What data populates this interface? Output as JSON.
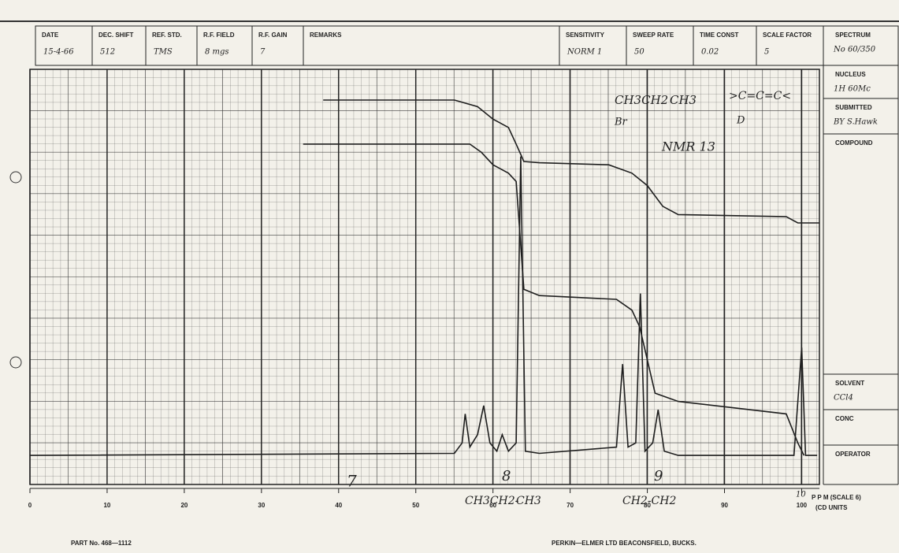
{
  "header": {
    "fields": [
      {
        "label": "DATE",
        "value": "15-4-66"
      },
      {
        "label": "DEC. SHIFT",
        "value": "512"
      },
      {
        "label": "REF. STD.",
        "value": "TMS"
      },
      {
        "label": "R.F. FIELD",
        "value": "8 mgs"
      },
      {
        "label": "R.F. GAIN",
        "value": "7"
      },
      {
        "label": "REMARKS"
      },
      {
        "label": "SENSITIVITY",
        "value": "NORM 1"
      },
      {
        "label": "SWEEP RATE",
        "value": "50"
      },
      {
        "label": "TIME CONST",
        "value": "0.02"
      },
      {
        "label": "SCALE FACTOR",
        "value": "5"
      }
    ],
    "side": [
      {
        "label": "SPECTRUM",
        "value": "No 60/350"
      },
      {
        "label": "NUCLEUS",
        "value": "1H 60Mc"
      },
      {
        "label": "SUBMITTED",
        "value": "BY S.Hawk"
      },
      {
        "label": "COMPOUND"
      },
      {
        "label": "SOLVENT",
        "value": "CCl4"
      },
      {
        "label": "CONC"
      },
      {
        "label": "OPERATOR"
      }
    ]
  },
  "chart_data": {
    "type": "line",
    "xlim": [
      0,
      102.3
    ],
    "ylim": [
      0,
      100
    ],
    "xticks": [
      0,
      10,
      20,
      30,
      40,
      50,
      60,
      70,
      80,
      90,
      100
    ],
    "grid": true,
    "x_label": "P P M (SCALE 6)",
    "x_label_2": "(CD UNITS",
    "annotations": [
      "7",
      "8",
      "9",
      "10",
      "NMR 13",
      "CH3CH2",
      "CH3",
      ">C=C=C<",
      "D",
      "Br",
      "CH3CH2-",
      "CH3",
      "CH2-CH2"
    ],
    "series": [
      {
        "color": "#1e1e1e",
        "x": [
          0,
          55,
          56,
          56.4,
          57,
          58,
          58.8,
          59.6,
          60.5,
          61.2,
          62,
          63,
          63.6,
          64.2,
          66,
          76,
          76.8,
          77.5,
          78.5,
          79.1,
          79.7,
          80.7,
          81.4,
          82.2,
          84,
          99,
          100,
          100.5,
          102
        ],
        "y": [
          7,
          7.5,
          10,
          17,
          9,
          12,
          19,
          10,
          8,
          12,
          8,
          10,
          79,
          8,
          7.5,
          9,
          29,
          9,
          10,
          46,
          8,
          10,
          18,
          8,
          7,
          7,
          33,
          7,
          7
        ]
      },
      {
        "color": "#1e1e1e",
        "x": [
          38,
          55,
          58,
          60,
          62,
          63,
          64,
          66,
          75,
          78,
          80,
          82,
          84,
          98,
          99.5,
          102.3
        ],
        "y": [
          92.6,
          92.6,
          91,
          88,
          86,
          82,
          77.8,
          77.5,
          77,
          75,
          72,
          67,
          65,
          64.5,
          63,
          63
        ]
      },
      {
        "color": "#1e1e1e",
        "x": [
          35.4,
          57,
          58.5,
          60,
          62,
          63,
          63.5,
          64,
          66,
          76,
          78,
          79,
          80,
          81,
          84,
          98,
          99.5,
          100.3
        ],
        "y": [
          82,
          82,
          80,
          77,
          75,
          73,
          60,
          47,
          45.5,
          44.6,
          42,
          38,
          30,
          22,
          20,
          17,
          10,
          7
        ]
      }
    ]
  },
  "footer": {
    "part": "PART No. 468—1112",
    "maker": "PERKIN—ELMER LTD BEACONSFIELD, BUCKS."
  }
}
